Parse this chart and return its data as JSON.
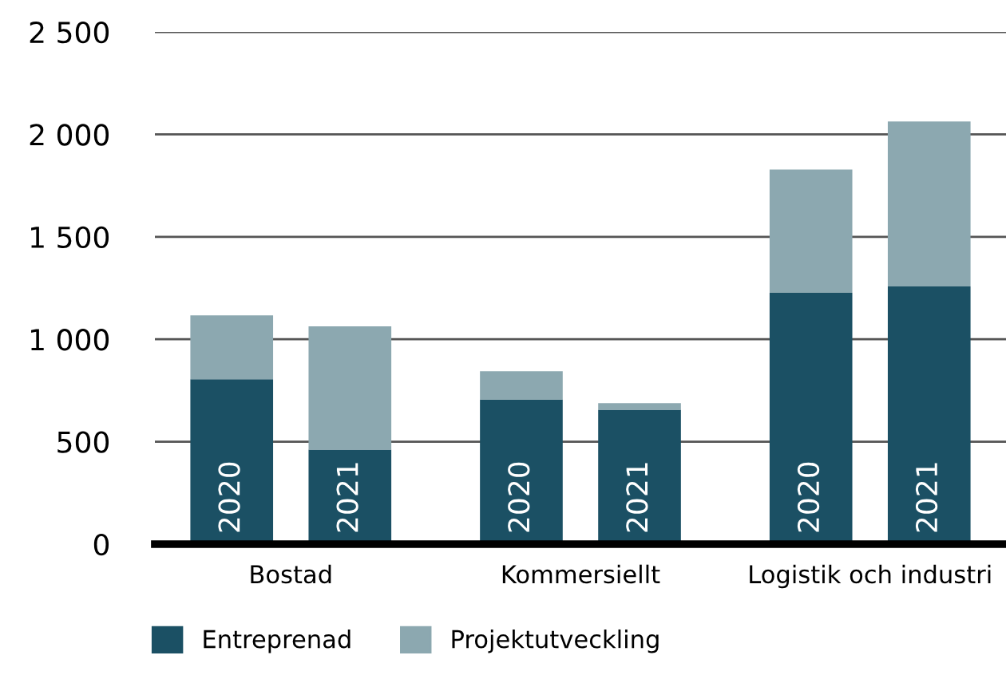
{
  "chart_data": {
    "type": "bar",
    "stacked": true,
    "categories": [
      "2020",
      "2021",
      "2020",
      "2021",
      "2020",
      "2021"
    ],
    "series": [
      {
        "name": "Entreprenad",
        "color": "#1b5064",
        "values": [
          805,
          461,
          706,
          656,
          1227,
          1258
        ]
      },
      {
        "name": "Projektutveckling",
        "color": "#8ca8b0",
        "values": [
          312,
          602,
          138,
          32,
          601,
          805
        ]
      }
    ],
    "ylim": [
      0,
      2500
    ],
    "yticks": [
      0,
      500,
      {
        "value": 1000,
        "label": "1 000"
      },
      {
        "value": 1500,
        "label": "1 500"
      },
      {
        "value": 2000,
        "label": "2 000"
      },
      {
        "value": 2500,
        "label": "2 500"
      }
    ],
    "annotations": [
      "Bostad",
      "Kommersiellt",
      "Logistik och industri"
    ],
    "grid": "y",
    "legend": "bottom"
  }
}
